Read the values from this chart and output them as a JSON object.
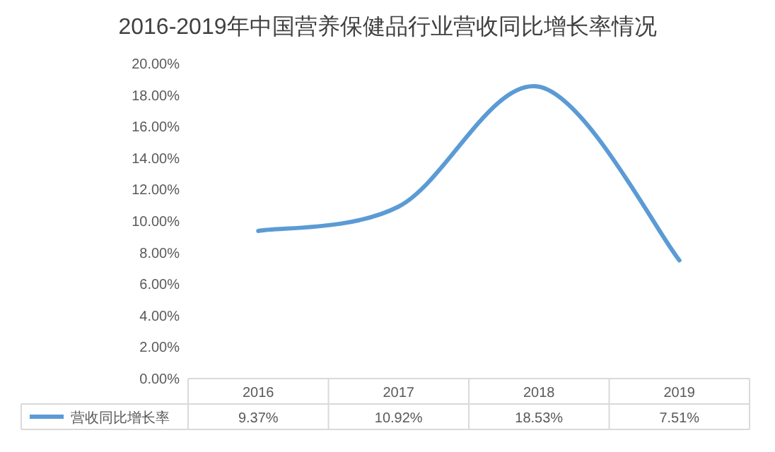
{
  "chart_data": {
    "type": "line",
    "title": "2016-2019年中国营养保健品行业营收同比增长率情况",
    "categories": [
      "2016",
      "2017",
      "2018",
      "2019"
    ],
    "series": [
      {
        "name": "营收同比增长率",
        "color": "#5b9bd5",
        "values": [
          9.37,
          10.92,
          18.53,
          7.51
        ],
        "value_labels": [
          "9.37%",
          "10.92%",
          "18.53%",
          "7.51%"
        ]
      }
    ],
    "ylim": [
      0,
      20
    ],
    "yticks": [
      {
        "value": 0,
        "label": "0.00%"
      },
      {
        "value": 2,
        "label": "2.00%"
      },
      {
        "value": 4,
        "label": "4.00%"
      },
      {
        "value": 6,
        "label": "6.00%"
      },
      {
        "value": 8,
        "label": "8.00%"
      },
      {
        "value": 10,
        "label": "10.00%"
      },
      {
        "value": 12,
        "label": "12.00%"
      },
      {
        "value": 14,
        "label": "14.00%"
      },
      {
        "value": 16,
        "label": "16.00%"
      },
      {
        "value": 18,
        "label": "18.00%"
      },
      {
        "value": 20,
        "label": "20.00%"
      }
    ],
    "legend": "bottom left",
    "marker": "none",
    "line_style": "solid",
    "grid": false
  }
}
